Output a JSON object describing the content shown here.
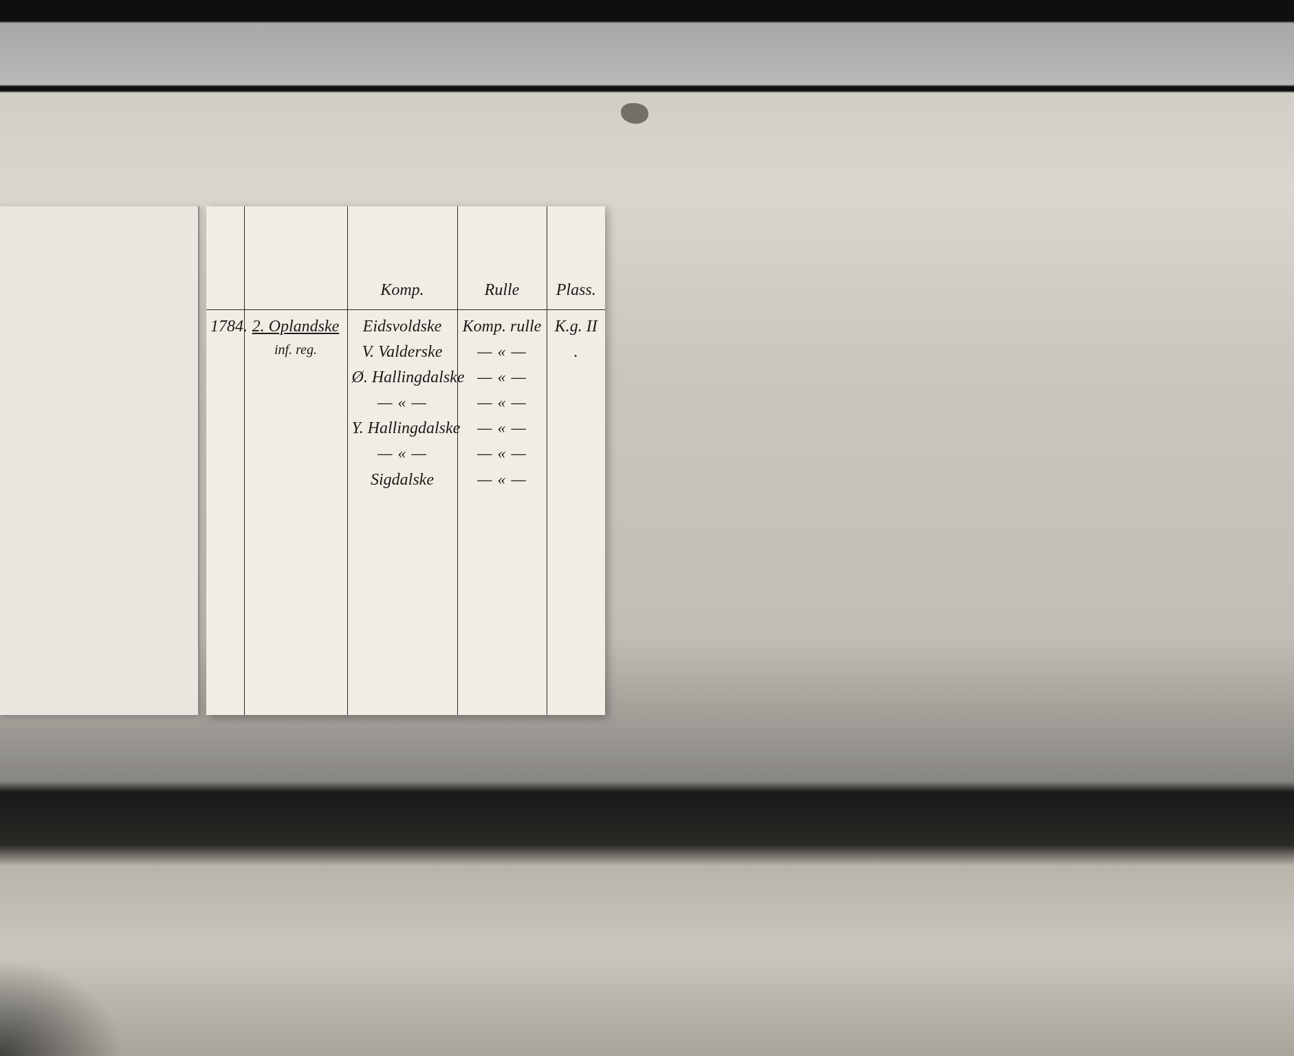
{
  "card": {
    "headers": {
      "year": "",
      "unit": "",
      "komp": "Komp.",
      "rulle": "Rulle",
      "plass": "Plass."
    },
    "year": "1784.",
    "unit_line1": "2. Oplandske",
    "unit_line2": "inf. reg.",
    "komp_items": [
      "Eidsvoldske",
      "V. Valderske",
      "Ø. Hallingdalske",
      "— « —",
      "Y. Hallingdalske",
      "— « —",
      "Sigdalske"
    ],
    "rulle_first": "Komp. rulle",
    "rulle_ditto": "— « —",
    "rulle_repeat_count": 6,
    "plass": "K.g. II ."
  },
  "colors": {
    "card_bg": "#f0ede4",
    "ink": "#1a1a1a",
    "film_bg": "#c8c6be"
  }
}
